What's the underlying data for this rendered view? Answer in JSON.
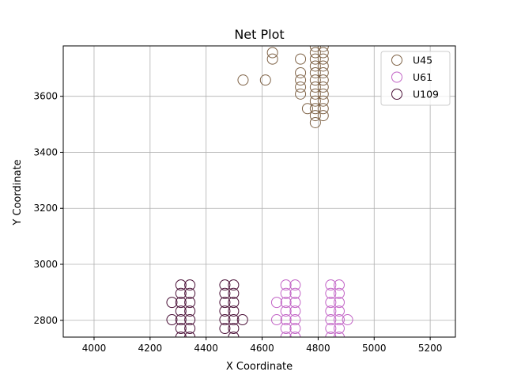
{
  "chart_data": {
    "type": "scatter",
    "title": "Net Plot",
    "xlabel": "X Coordinate",
    "ylabel": "Y Coordinate",
    "xlim": [
      3890,
      5290
    ],
    "ylim": [
      2740,
      3780
    ],
    "xticks": [
      4000,
      4200,
      4400,
      4600,
      4800,
      5000,
      5200
    ],
    "yticks": [
      2800,
      3000,
      3200,
      3400,
      3600
    ],
    "grid": true,
    "legend_position": "top-right",
    "marker": "open-circle",
    "series": [
      {
        "name": "U45",
        "color": "#7f6347",
        "points": [
          [
            4532,
            3658
          ],
          [
            4612,
            3658
          ],
          [
            4637,
            3756
          ],
          [
            4637,
            3733
          ],
          [
            4737,
            3733
          ],
          [
            4737,
            3684
          ],
          [
            4737,
            3658
          ],
          [
            4737,
            3633
          ],
          [
            4737,
            3608
          ],
          [
            4762,
            3556
          ],
          [
            4790,
            3778
          ],
          [
            4790,
            3756
          ],
          [
            4790,
            3733
          ],
          [
            4790,
            3708
          ],
          [
            4790,
            3684
          ],
          [
            4790,
            3658
          ],
          [
            4790,
            3633
          ],
          [
            4790,
            3608
          ],
          [
            4790,
            3583
          ],
          [
            4790,
            3556
          ],
          [
            4790,
            3531
          ],
          [
            4790,
            3506
          ],
          [
            4818,
            3778
          ],
          [
            4818,
            3756
          ],
          [
            4818,
            3733
          ],
          [
            4818,
            3708
          ],
          [
            4818,
            3684
          ],
          [
            4818,
            3658
          ],
          [
            4818,
            3633
          ],
          [
            4818,
            3608
          ],
          [
            4818,
            3583
          ],
          [
            4818,
            3556
          ],
          [
            4818,
            3531
          ]
        ]
      },
      {
        "name": "U61",
        "color": "#c264c6",
        "points": [
          [
            4652,
            2864
          ],
          [
            4652,
            2802
          ],
          [
            4685,
            2926
          ],
          [
            4685,
            2896
          ],
          [
            4685,
            2864
          ],
          [
            4685,
            2833
          ],
          [
            4685,
            2802
          ],
          [
            4685,
            2771
          ],
          [
            4685,
            2740
          ],
          [
            4718,
            2926
          ],
          [
            4718,
            2896
          ],
          [
            4718,
            2864
          ],
          [
            4718,
            2833
          ],
          [
            4718,
            2802
          ],
          [
            4718,
            2771
          ],
          [
            4718,
            2740
          ],
          [
            4845,
            2926
          ],
          [
            4845,
            2896
          ],
          [
            4845,
            2864
          ],
          [
            4845,
            2833
          ],
          [
            4845,
            2802
          ],
          [
            4845,
            2771
          ],
          [
            4845,
            2740
          ],
          [
            4875,
            2926
          ],
          [
            4875,
            2896
          ],
          [
            4875,
            2864
          ],
          [
            4875,
            2833
          ],
          [
            4875,
            2802
          ],
          [
            4875,
            2771
          ],
          [
            4875,
            2740
          ],
          [
            4905,
            2802
          ]
        ]
      },
      {
        "name": "U109",
        "color": "#4a1037",
        "points": [
          [
            4278,
            2864
          ],
          [
            4278,
            2802
          ],
          [
            4310,
            2926
          ],
          [
            4310,
            2896
          ],
          [
            4310,
            2864
          ],
          [
            4310,
            2833
          ],
          [
            4310,
            2802
          ],
          [
            4310,
            2771
          ],
          [
            4310,
            2740
          ],
          [
            4342,
            2926
          ],
          [
            4342,
            2896
          ],
          [
            4342,
            2864
          ],
          [
            4342,
            2833
          ],
          [
            4342,
            2802
          ],
          [
            4342,
            2771
          ],
          [
            4342,
            2740
          ],
          [
            4467,
            2926
          ],
          [
            4467,
            2896
          ],
          [
            4467,
            2864
          ],
          [
            4467,
            2833
          ],
          [
            4467,
            2802
          ],
          [
            4467,
            2771
          ],
          [
            4498,
            2926
          ],
          [
            4498,
            2896
          ],
          [
            4498,
            2864
          ],
          [
            4498,
            2833
          ],
          [
            4498,
            2802
          ],
          [
            4498,
            2771
          ],
          [
            4498,
            2740
          ],
          [
            4530,
            2802
          ]
        ]
      }
    ]
  }
}
